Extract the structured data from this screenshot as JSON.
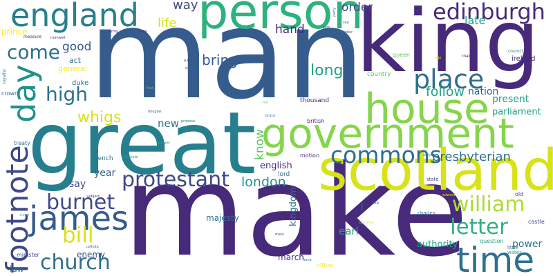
{
  "palette": {
    "navy": "#472a7a",
    "indigo": "#3f4889",
    "blue": "#365c8d",
    "steel": "#2e6f8e",
    "teal": "#277f8e",
    "cyan": "#21918c",
    "aqua": "#1fa187",
    "green": "#2db27d",
    "lime": "#5ec962",
    "yellowgreen": "#85d54a",
    "chartreuse": "#addc30",
    "yellow": "#d8e219",
    "gold": "#fde725"
  },
  "words": [
    {
      "text": "man",
      "color": "blue"
    },
    {
      "text": "make",
      "color": "navy"
    },
    {
      "text": "king",
      "color": "navy"
    },
    {
      "text": "great",
      "color": "teal"
    },
    {
      "text": "government",
      "color": "yellowgreen"
    },
    {
      "text": "scotland",
      "color": "yellow"
    },
    {
      "text": "person",
      "color": "green"
    },
    {
      "text": "house",
      "color": "yellowgreen"
    },
    {
      "text": "england",
      "color": "teal"
    },
    {
      "text": "edinburgh",
      "color": "navy"
    },
    {
      "text": "time",
      "color": "steel"
    },
    {
      "text": "place",
      "color": "steel"
    },
    {
      "text": "footnote",
      "color": "indigo"
    },
    {
      "text": "day",
      "color": "cyan"
    },
    {
      "text": "james",
      "color": "blue"
    },
    {
      "text": "church",
      "color": "steel"
    },
    {
      "text": "protestant",
      "color": "indigo"
    },
    {
      "text": "commons",
      "color": "steel"
    },
    {
      "text": "william",
      "color": "chartreuse"
    },
    {
      "text": "letter",
      "color": "green"
    },
    {
      "text": "burnet",
      "color": "indigo"
    },
    {
      "text": "bill",
      "color": "yellow"
    },
    {
      "text": "come",
      "color": "steel"
    },
    {
      "text": "high",
      "color": "steel"
    },
    {
      "text": "whigs",
      "color": "yellow"
    },
    {
      "text": "long",
      "color": "aqua"
    },
    {
      "text": "follow",
      "color": "aqua"
    },
    {
      "text": "bring",
      "color": "blue"
    },
    {
      "text": "london",
      "color": "cyan"
    },
    {
      "text": "presbyterian",
      "color": "steel"
    },
    {
      "text": "way",
      "color": "indigo"
    },
    {
      "text": "life",
      "color": "yellow"
    },
    {
      "text": "order",
      "color": "indigo"
    },
    {
      "text": "hand",
      "color": "navy"
    },
    {
      "text": "late",
      "color": "aqua"
    },
    {
      "text": "good",
      "color": "blue"
    },
    {
      "text": "nation",
      "color": "blue"
    },
    {
      "text": "present",
      "color": "aqua"
    },
    {
      "text": "parliament",
      "color": "aqua"
    },
    {
      "text": "year",
      "color": "blue"
    },
    {
      "text": "say",
      "color": "indigo"
    },
    {
      "text": "new",
      "color": "steel"
    },
    {
      "text": "know",
      "color": "lime"
    },
    {
      "text": "english",
      "color": "navy"
    },
    {
      "text": "kingdom",
      "color": "steel"
    },
    {
      "text": "earl",
      "color": "aqua"
    },
    {
      "text": "majesty",
      "color": "steel"
    },
    {
      "text": "authority",
      "color": "aqua"
    },
    {
      "text": "power",
      "color": "steel"
    },
    {
      "text": "enemy",
      "color": "indigo"
    },
    {
      "text": "march",
      "color": "navy"
    },
    {
      "text": "law",
      "color": "steel"
    },
    {
      "text": "prince",
      "color": "gold"
    },
    {
      "text": "act",
      "color": "steel"
    },
    {
      "text": "general",
      "color": "gold"
    },
    {
      "text": "duke",
      "color": "steel"
    },
    {
      "text": "ireland",
      "color": "navy"
    },
    {
      "text": "country",
      "color": "lime"
    },
    {
      "text": "thousand",
      "color": "navy"
    },
    {
      "text": "lord",
      "color": "steel"
    },
    {
      "text": "british",
      "color": "navy"
    },
    {
      "text": "motion",
      "color": "navy"
    },
    {
      "text": "french",
      "color": "steel"
    },
    {
      "text": "queen",
      "color": "lime"
    },
    {
      "text": "old",
      "color": "indigo"
    },
    {
      "text": "castle",
      "color": "indigo"
    },
    {
      "text": "question",
      "color": "aqua"
    },
    {
      "text": "little",
      "color": "steel"
    },
    {
      "text": "water",
      "color": "aqua"
    },
    {
      "text": "state",
      "color": "indigo"
    },
    {
      "text": "charles",
      "color": "steel"
    },
    {
      "text": "officer",
      "color": "gold"
    },
    {
      "text": "minister",
      "color": "indigo"
    },
    {
      "text": "treaty",
      "color": "steel"
    },
    {
      "text": "crown",
      "color": "steel"
    },
    {
      "text": "road",
      "color": "navy"
    },
    {
      "text": "council",
      "color": "teal"
    },
    {
      "text": "royalist",
      "color": "steel"
    },
    {
      "text": "measure",
      "color": "navy"
    },
    {
      "text": "army",
      "color": "navy"
    },
    {
      "text": "mile",
      "color": "navy"
    },
    {
      "text": "cromwell",
      "color": "navy"
    },
    {
      "text": "a.d",
      "color": "navy"
    },
    {
      "text": "david",
      "color": "steel"
    },
    {
      "text": "foot",
      "color": "lime"
    },
    {
      "text": "hill",
      "color": "lime"
    },
    {
      "text": "bruce",
      "color": "steel"
    },
    {
      "text": "douglas",
      "color": "steel"
    },
    {
      "text": "propose",
      "color": "teal"
    },
    {
      "text": "benefit",
      "color": "aqua"
    },
    {
      "text": "sidenote",
      "color": "aqua"
    },
    {
      "text": "argyll",
      "color": "aqua"
    },
    {
      "text": "subject",
      "color": "navy"
    },
    {
      "text": "catholic",
      "color": "steel"
    },
    {
      "text": "stand",
      "color": "lime"
    },
    {
      "text": "mary",
      "color": "indigo"
    },
    {
      "text": "force",
      "color": "steel"
    },
    {
      "text": "town",
      "color": "steel"
    },
    {
      "text": "like",
      "color": "steel"
    },
    {
      "text": "edward",
      "color": "yellow"
    },
    {
      "text": "scot",
      "color": "indigo"
    },
    {
      "text": "sea",
      "color": "steel"
    },
    {
      "text": "party",
      "color": "steel"
    },
    {
      "text": "member",
      "color": "steel"
    },
    {
      "text": "doctrine",
      "color": "yellow"
    },
    {
      "text": "ago",
      "color": "yellow"
    }
  ]
}
